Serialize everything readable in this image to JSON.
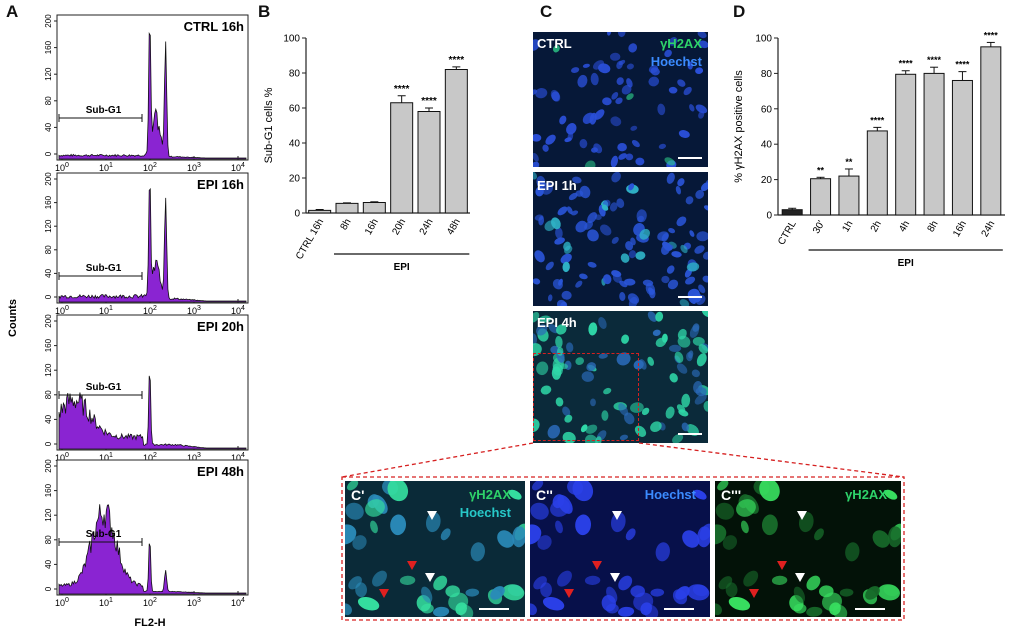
{
  "panel_labels": {
    "a": "A",
    "b": "B",
    "c": "C",
    "d": "D"
  },
  "histograms": {
    "ylabel": "Counts",
    "xlabel": "FL2-H",
    "yticks": [
      "0",
      "40",
      "80",
      "120",
      "160",
      "200"
    ],
    "xticks": [
      {
        "base": "10",
        "exp": "0"
      },
      {
        "base": "10",
        "exp": "1"
      },
      {
        "base": "10",
        "exp": "2"
      },
      {
        "base": "10",
        "exp": "3"
      },
      {
        "base": "10",
        "exp": "4"
      }
    ],
    "gate_label": "Sub-G1",
    "fill_color": "#8a24d2",
    "panels": [
      {
        "title": "CTRL 16h",
        "g1_height": 200,
        "g2_height": 170,
        "subg1_level": 4,
        "subg1_profile": "flat"
      },
      {
        "title": "EPI 16h",
        "g1_height": 200,
        "g2_height": 170,
        "subg1_level": 8,
        "subg1_profile": "flat"
      },
      {
        "title": "EPI 20h",
        "g1_height": 130,
        "g2_height": 0,
        "subg1_level": 50,
        "subg1_profile": "broad"
      },
      {
        "title": "EPI 48h",
        "g1_height": 90,
        "g2_height": 35,
        "subg1_level": 120,
        "subg1_profile": "dominant"
      }
    ]
  },
  "chart_data": [
    {
      "type": "bar",
      "ylabel": "Sub-G1 cells %",
      "ylim": [
        0,
        100
      ],
      "yticks": [
        "0",
        "20",
        "40",
        "60",
        "80",
        "100"
      ],
      "categories": [
        "CTRL 16h",
        "8h",
        "16h",
        "20h",
        "24h",
        "48h"
      ],
      "values": [
        1.5,
        5.5,
        6,
        63,
        58,
        82
      ],
      "errors": [
        0.5,
        0.3,
        0.4,
        4,
        2,
        1.5
      ],
      "significance": [
        "",
        "",
        "",
        "****",
        "****",
        "****"
      ],
      "group_label": "EPI",
      "bar_color": "#c8c8c8"
    },
    {
      "type": "bar",
      "ylabel": "% γH2AX positive cells",
      "ylim": [
        0,
        100
      ],
      "yticks": [
        "0",
        "20",
        "40",
        "60",
        "80",
        "100"
      ],
      "categories": [
        "CTRL",
        "30'",
        "1h",
        "2h",
        "4h",
        "8h",
        "16h",
        "24h"
      ],
      "values": [
        3,
        20.5,
        22,
        47.5,
        79.5,
        80,
        76,
        95
      ],
      "errors": [
        0.8,
        0.8,
        4,
        2,
        2,
        3.5,
        5,
        2.5
      ],
      "significance": [
        "",
        "**",
        "**",
        "****",
        "****",
        "****",
        "****",
        "****"
      ],
      "group_label": "EPI",
      "bar_colors": [
        "#222222",
        "#c8c8c8",
        "#c8c8c8",
        "#c8c8c8",
        "#c8c8c8",
        "#c8c8c8",
        "#c8c8c8",
        "#c8c8c8"
      ]
    }
  ],
  "micrographs": {
    "ctrl": {
      "label": "CTRL",
      "stain1": "γH2AX",
      "stain2": "Hoechst"
    },
    "epi1": {
      "label": "EPI 1h"
    },
    "epi4": {
      "label": "EPI 4h"
    },
    "zoom1": {
      "label": "C'",
      "stain1": "γH2AX",
      "stain2": "Hoechst"
    },
    "zoom2": {
      "label": "C''",
      "stain1": "Hoechst"
    },
    "zoom3": {
      "label": "C'''",
      "stain1": "γH2AX"
    },
    "colors": {
      "green": "#2ed36a",
      "blue": "#3b6dff",
      "cyan": "#27c8c8",
      "frame": "#d62020"
    }
  }
}
